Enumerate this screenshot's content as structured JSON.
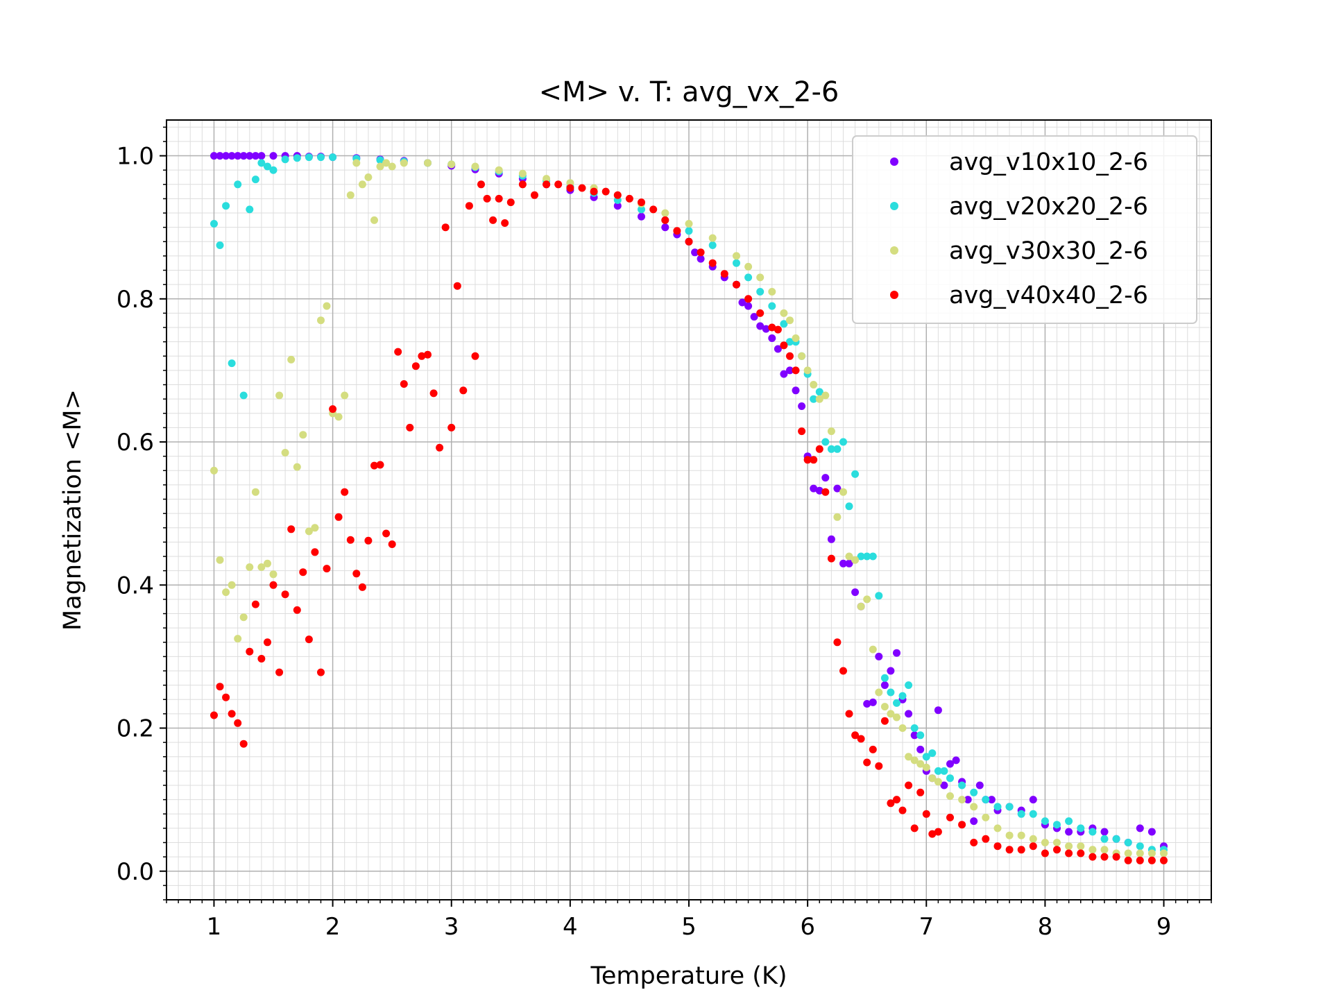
{
  "chart_data": {
    "type": "scatter",
    "title": "<M> v. T: avg_vx_2-6",
    "xlabel": "Temperature (K)",
    "ylabel": "Magnetization <M>",
    "xlim": [
      0.6,
      9.4
    ],
    "ylim": [
      -0.04,
      1.05
    ],
    "xticks": [
      1,
      2,
      3,
      4,
      5,
      6,
      7,
      8,
      9
    ],
    "xtick_labels": [
      "1",
      "2",
      "3",
      "4",
      "5",
      "6",
      "7",
      "8",
      "9"
    ],
    "yticks": [
      0.0,
      0.2,
      0.4,
      0.6,
      0.8,
      1.0
    ],
    "ytick_labels": [
      "0.0",
      "0.2",
      "0.4",
      "0.6",
      "0.8",
      "1.0"
    ],
    "grid": "major and minor",
    "legend_position": "top-right",
    "series": [
      {
        "name": "avg_v10x10_2-6",
        "color": "#8000ff",
        "x": [
          1.0,
          1.05,
          1.1,
          1.15,
          1.2,
          1.25,
          1.3,
          1.35,
          1.4,
          1.5,
          1.6,
          1.7,
          1.8,
          1.9,
          2.0,
          2.2,
          2.4,
          2.6,
          2.8,
          3.0,
          3.2,
          3.4,
          3.6,
          3.8,
          4.0,
          4.2,
          4.4,
          4.6,
          4.8,
          4.9,
          5.0,
          5.05,
          5.1,
          5.2,
          5.3,
          5.4,
          5.45,
          5.5,
          5.55,
          5.6,
          5.65,
          5.7,
          5.75,
          5.8,
          5.85,
          5.9,
          5.95,
          6.0,
          6.05,
          6.1,
          6.15,
          6.2,
          6.25,
          6.3,
          6.35,
          6.4,
          6.45,
          6.5,
          6.55,
          6.6,
          6.65,
          6.7,
          6.75,
          6.8,
          6.85,
          6.9,
          6.95,
          7.0,
          7.05,
          7.1,
          7.15,
          7.2,
          7.25,
          7.3,
          7.35,
          7.4,
          7.45,
          7.5,
          7.55,
          7.6,
          7.7,
          7.8,
          7.9,
          8.0,
          8.1,
          8.2,
          8.3,
          8.4,
          8.5,
          8.6,
          8.7,
          8.8,
          8.9,
          9.0
        ],
        "y": [
          1.0,
          1.0,
          1.0,
          1.0,
          1.0,
          1.0,
          1.0,
          1.0,
          1.0,
          1.0,
          1.0,
          1.0,
          0.999,
          0.999,
          0.998,
          0.997,
          0.995,
          0.993,
          0.99,
          0.986,
          0.981,
          0.975,
          0.968,
          0.96,
          0.952,
          0.942,
          0.93,
          0.915,
          0.9,
          0.89,
          0.88,
          0.865,
          0.856,
          0.845,
          0.83,
          0.82,
          0.795,
          0.79,
          0.775,
          0.762,
          0.758,
          0.745,
          0.73,
          0.695,
          0.7,
          0.672,
          0.65,
          0.58,
          0.535,
          0.532,
          0.55,
          0.464,
          0.535,
          0.43,
          0.43,
          0.39,
          0.37,
          0.234,
          0.236,
          0.3,
          0.26,
          0.28,
          0.305,
          0.24,
          0.22,
          0.19,
          0.17,
          0.14,
          0.13,
          0.225,
          0.12,
          0.15,
          0.155,
          0.125,
          0.1,
          0.07,
          0.12,
          0.1,
          0.1,
          0.085,
          0.09,
          0.085,
          0.1,
          0.065,
          0.06,
          0.055,
          0.055,
          0.06,
          0.055,
          0.045,
          0.04,
          0.06,
          0.055,
          0.035
        ]
      },
      {
        "name": "avg_v20x20_2-6",
        "color": "#2adddd",
        "x": [
          1.0,
          1.05,
          1.1,
          1.15,
          1.2,
          1.25,
          1.3,
          1.35,
          1.4,
          1.45,
          1.5,
          1.6,
          1.7,
          1.8,
          1.9,
          2.0,
          2.2,
          2.4,
          2.6,
          2.8,
          3.0,
          3.2,
          3.4,
          3.6,
          3.8,
          4.0,
          4.2,
          4.4,
          4.6,
          4.8,
          5.0,
          5.2,
          5.4,
          5.5,
          5.6,
          5.7,
          5.8,
          5.85,
          5.9,
          5.95,
          6.0,
          6.05,
          6.1,
          6.15,
          6.2,
          6.25,
          6.3,
          6.35,
          6.4,
          6.45,
          6.5,
          6.55,
          6.6,
          6.65,
          6.7,
          6.75,
          6.8,
          6.85,
          6.9,
          6.95,
          7.0,
          7.05,
          7.1,
          7.15,
          7.2,
          7.3,
          7.4,
          7.5,
          7.6,
          7.7,
          7.8,
          7.9,
          8.0,
          8.1,
          8.2,
          8.3,
          8.4,
          8.5,
          8.6,
          8.7,
          8.8,
          8.9,
          9.0
        ],
        "y": [
          0.905,
          0.875,
          0.93,
          0.71,
          0.96,
          0.665,
          0.925,
          0.967,
          0.99,
          0.985,
          0.98,
          0.995,
          0.997,
          0.998,
          0.998,
          0.998,
          0.996,
          0.994,
          0.992,
          0.99,
          0.988,
          0.984,
          0.978,
          0.972,
          0.965,
          0.957,
          0.948,
          0.938,
          0.925,
          0.91,
          0.895,
          0.875,
          0.85,
          0.83,
          0.81,
          0.79,
          0.765,
          0.74,
          0.74,
          0.72,
          0.695,
          0.66,
          0.67,
          0.6,
          0.59,
          0.59,
          0.6,
          0.51,
          0.555,
          0.44,
          0.44,
          0.44,
          0.385,
          0.27,
          0.25,
          0.235,
          0.245,
          0.26,
          0.2,
          0.19,
          0.16,
          0.165,
          0.14,
          0.14,
          0.13,
          0.12,
          0.11,
          0.1,
          0.09,
          0.09,
          0.08,
          0.08,
          0.07,
          0.065,
          0.07,
          0.06,
          0.055,
          0.045,
          0.045,
          0.04,
          0.035,
          0.03,
          0.03
        ]
      },
      {
        "name": "avg_v30x30_2-6",
        "color": "#d4dd80",
        "x": [
          1.0,
          1.05,
          1.1,
          1.15,
          1.2,
          1.25,
          1.3,
          1.35,
          1.4,
          1.45,
          1.5,
          1.55,
          1.6,
          1.65,
          1.7,
          1.75,
          1.8,
          1.85,
          1.9,
          1.95,
          2.0,
          2.05,
          2.1,
          2.15,
          2.2,
          2.25,
          2.3,
          2.35,
          2.4,
          2.45,
          2.5,
          2.6,
          2.8,
          3.0,
          3.2,
          3.4,
          3.6,
          3.8,
          4.0,
          4.2,
          4.4,
          4.6,
          4.8,
          5.0,
          5.2,
          5.4,
          5.5,
          5.6,
          5.7,
          5.8,
          5.85,
          5.9,
          5.95,
          6.0,
          6.05,
          6.1,
          6.15,
          6.2,
          6.25,
          6.3,
          6.35,
          6.4,
          6.45,
          6.5,
          6.55,
          6.6,
          6.65,
          6.7,
          6.75,
          6.8,
          6.85,
          6.9,
          6.95,
          7.0,
          7.05,
          7.1,
          7.2,
          7.3,
          7.4,
          7.5,
          7.6,
          7.7,
          7.8,
          7.9,
          8.0,
          8.1,
          8.2,
          8.3,
          8.4,
          8.5,
          8.6,
          8.7,
          8.8,
          8.9,
          9.0
        ],
        "y": [
          0.56,
          0.435,
          0.39,
          0.4,
          0.325,
          0.355,
          0.425,
          0.53,
          0.425,
          0.43,
          0.415,
          0.665,
          0.585,
          0.715,
          0.565,
          0.61,
          0.475,
          0.48,
          0.77,
          0.79,
          0.64,
          0.635,
          0.665,
          0.945,
          0.99,
          0.96,
          0.97,
          0.91,
          0.985,
          0.99,
          0.985,
          0.99,
          0.99,
          0.988,
          0.985,
          0.98,
          0.975,
          0.968,
          0.962,
          0.955,
          0.945,
          0.933,
          0.92,
          0.905,
          0.885,
          0.86,
          0.845,
          0.83,
          0.81,
          0.78,
          0.77,
          0.745,
          0.72,
          0.7,
          0.68,
          0.66,
          0.665,
          0.615,
          0.495,
          0.53,
          0.44,
          0.435,
          0.37,
          0.38,
          0.31,
          0.25,
          0.23,
          0.22,
          0.215,
          0.2,
          0.16,
          0.155,
          0.15,
          0.145,
          0.13,
          0.125,
          0.105,
          0.1,
          0.09,
          0.075,
          0.06,
          0.05,
          0.05,
          0.045,
          0.04,
          0.04,
          0.035,
          0.035,
          0.03,
          0.03,
          0.025,
          0.025,
          0.025,
          0.025,
          0.025
        ]
      },
      {
        "name": "avg_v40x40_2-6",
        "color": "#ff0000",
        "x": [
          1.0,
          1.05,
          1.1,
          1.15,
          1.2,
          1.25,
          1.3,
          1.35,
          1.4,
          1.45,
          1.5,
          1.55,
          1.6,
          1.65,
          1.7,
          1.75,
          1.8,
          1.85,
          1.9,
          1.95,
          2.0,
          2.05,
          2.1,
          2.15,
          2.2,
          2.25,
          2.3,
          2.35,
          2.4,
          2.45,
          2.5,
          2.55,
          2.6,
          2.65,
          2.7,
          2.75,
          2.8,
          2.85,
          2.9,
          2.95,
          3.0,
          3.05,
          3.1,
          3.15,
          3.2,
          3.25,
          3.3,
          3.35,
          3.4,
          3.45,
          3.5,
          3.6,
          3.7,
          3.8,
          3.9,
          4.0,
          4.1,
          4.2,
          4.3,
          4.4,
          4.5,
          4.6,
          4.7,
          4.8,
          4.9,
          5.0,
          5.1,
          5.2,
          5.3,
          5.4,
          5.5,
          5.6,
          5.7,
          5.75,
          5.8,
          5.85,
          5.9,
          5.95,
          6.0,
          6.05,
          6.1,
          6.15,
          6.2,
          6.25,
          6.3,
          6.35,
          6.4,
          6.45,
          6.5,
          6.55,
          6.6,
          6.65,
          6.7,
          6.75,
          6.8,
          6.85,
          6.9,
          6.95,
          7.0,
          7.05,
          7.1,
          7.2,
          7.3,
          7.4,
          7.5,
          7.6,
          7.7,
          7.8,
          7.9,
          8.0,
          8.1,
          8.2,
          8.3,
          8.4,
          8.5,
          8.6,
          8.7,
          8.8,
          8.9,
          9.0
        ],
        "y": [
          0.218,
          0.258,
          0.243,
          0.22,
          0.207,
          0.178,
          0.307,
          0.373,
          0.297,
          0.32,
          0.4,
          0.278,
          0.387,
          0.478,
          0.365,
          0.418,
          0.324,
          0.446,
          0.278,
          0.423,
          0.646,
          0.495,
          0.53,
          0.463,
          0.416,
          0.397,
          0.462,
          0.567,
          0.568,
          0.472,
          0.457,
          0.726,
          0.681,
          0.62,
          0.706,
          0.72,
          0.722,
          0.668,
          0.592,
          0.9,
          0.62,
          0.818,
          0.672,
          0.93,
          0.72,
          0.96,
          0.94,
          0.91,
          0.94,
          0.906,
          0.935,
          0.96,
          0.945,
          0.96,
          0.96,
          0.955,
          0.955,
          0.95,
          0.95,
          0.945,
          0.94,
          0.935,
          0.925,
          0.91,
          0.895,
          0.88,
          0.865,
          0.85,
          0.835,
          0.82,
          0.8,
          0.78,
          0.76,
          0.757,
          0.735,
          0.72,
          0.7,
          0.615,
          0.575,
          0.575,
          0.59,
          0.53,
          0.437,
          0.32,
          0.28,
          0.22,
          0.19,
          0.185,
          0.152,
          0.17,
          0.147,
          0.21,
          0.095,
          0.1,
          0.085,
          0.12,
          0.06,
          0.11,
          0.08,
          0.052,
          0.055,
          0.075,
          0.065,
          0.04,
          0.045,
          0.035,
          0.03,
          0.03,
          0.035,
          0.025,
          0.03,
          0.025,
          0.025,
          0.02,
          0.02,
          0.02,
          0.015,
          0.015,
          0.015,
          0.015
        ]
      }
    ]
  }
}
